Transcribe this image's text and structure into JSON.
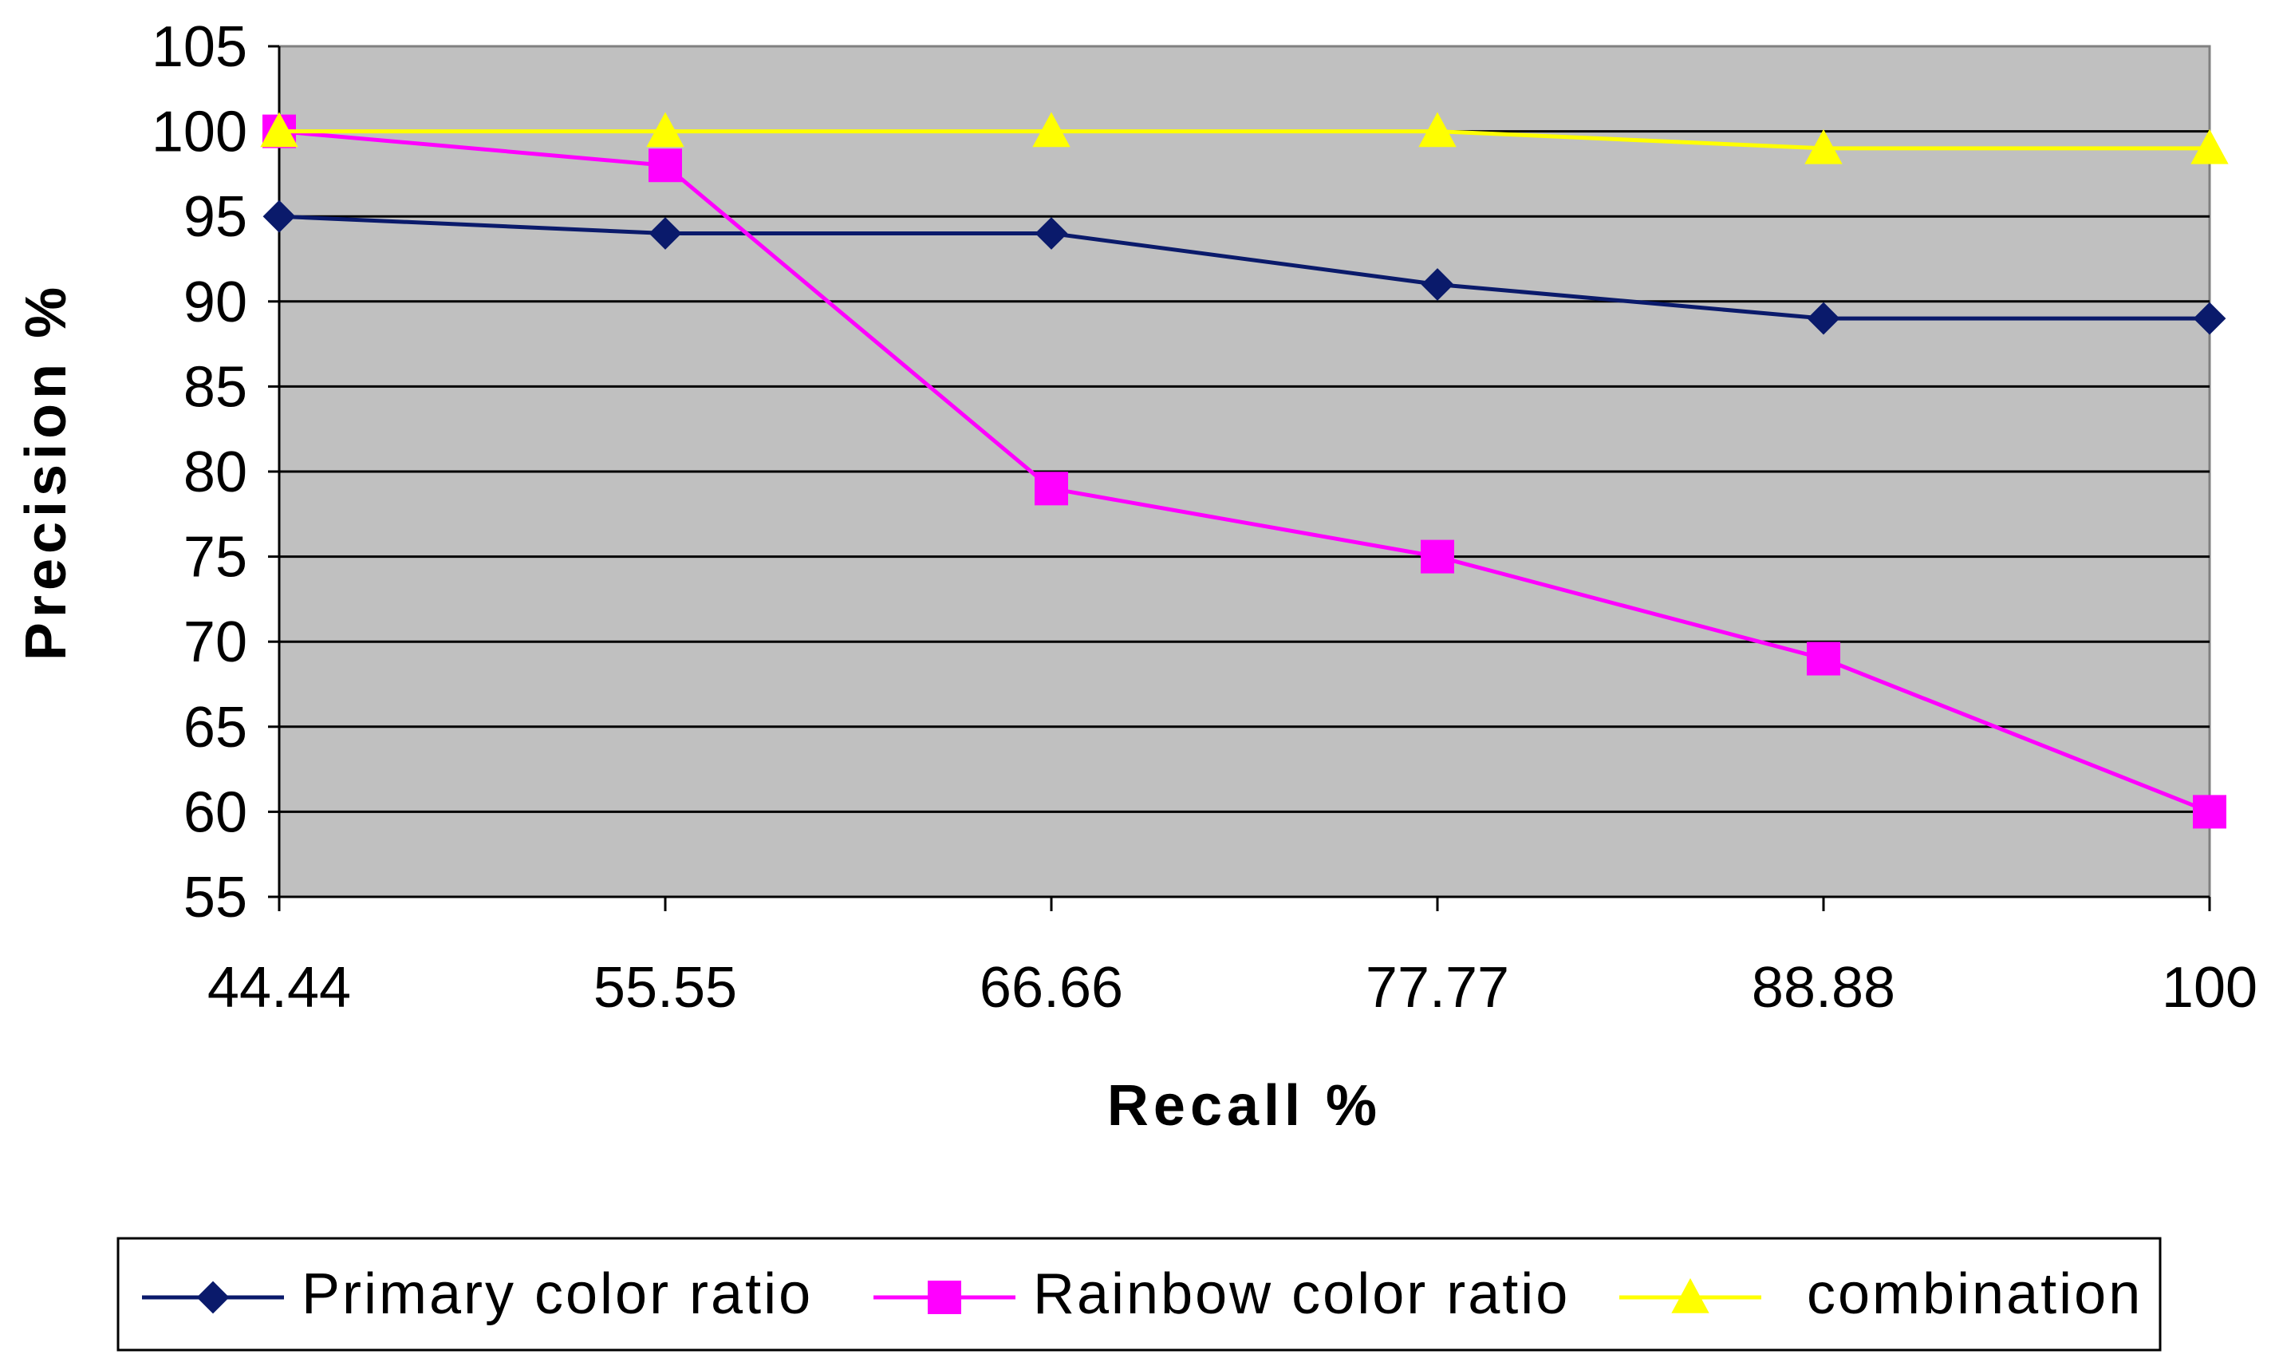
{
  "chart_data": {
    "type": "line",
    "xlabel": "Recall %",
    "ylabel": "Precision %",
    "categories": [
      "44.44",
      "55.55",
      "66.66",
      "77.77",
      "88.88",
      "100"
    ],
    "ylim": [
      55,
      105
    ],
    "yticks": [
      55,
      60,
      65,
      70,
      75,
      80,
      85,
      90,
      95,
      100,
      105
    ],
    "grid": "horizontal",
    "legend_position": "bottom",
    "plot_background": "#c0c0c0",
    "series": [
      {
        "name": "Primary color ratio",
        "values": [
          95,
          94,
          94,
          91,
          89,
          89
        ],
        "color": "#0a1a6b",
        "marker": "diamond"
      },
      {
        "name": "Rainbow color ratio",
        "values": [
          100,
          98,
          79,
          75,
          69,
          60
        ],
        "color": "#ff00ff",
        "marker": "square"
      },
      {
        "name": "combination",
        "values": [
          100,
          100,
          100,
          100,
          99,
          99
        ],
        "color": "#ffff00",
        "marker": "triangle"
      }
    ]
  }
}
